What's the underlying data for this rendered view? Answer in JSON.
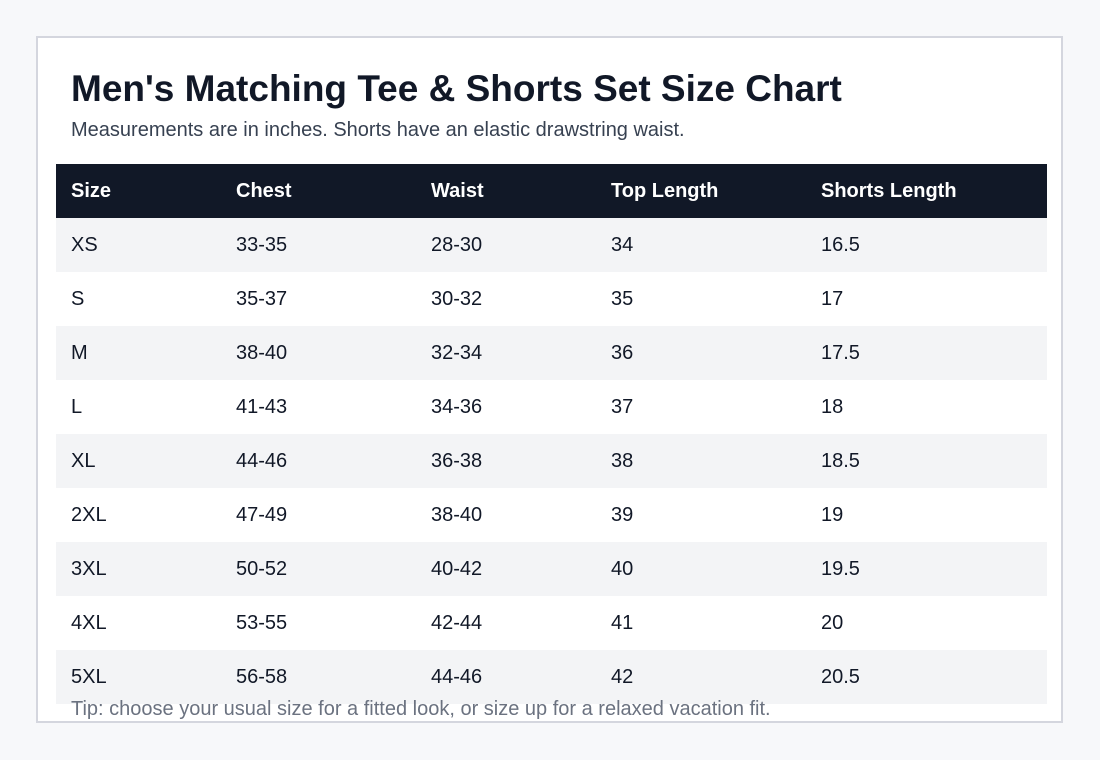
{
  "title": "Men's Matching Tee & Shorts Set Size Chart",
  "subtitle": "Measurements are in inches. Shorts have an elastic drawstring waist.",
  "table": {
    "headers": [
      "Size",
      "Chest",
      "Waist",
      "Top Length",
      "Shorts Length"
    ],
    "rows": [
      [
        "XS",
        "33-35",
        "28-30",
        "34",
        "16.5"
      ],
      [
        "S",
        "35-37",
        "30-32",
        "35",
        "17"
      ],
      [
        "M",
        "38-40",
        "32-34",
        "36",
        "17.5"
      ],
      [
        "L",
        "41-43",
        "34-36",
        "37",
        "18"
      ],
      [
        "XL",
        "44-46",
        "36-38",
        "38",
        "18.5"
      ],
      [
        "2XL",
        "47-49",
        "38-40",
        "39",
        "19"
      ],
      [
        "3XL",
        "50-52",
        "40-42",
        "40",
        "19.5"
      ],
      [
        "4XL",
        "53-55",
        "42-44",
        "41",
        "20"
      ],
      [
        "5XL",
        "56-58",
        "44-46",
        "42",
        "20.5"
      ]
    ]
  },
  "tip": "Tip: choose your usual size for a fitted look, or size up for a relaxed vacation fit.",
  "colors": {
    "header_background": "#111827",
    "stripe_background": "#f3f4f6",
    "card_border": "#d4d6de"
  }
}
